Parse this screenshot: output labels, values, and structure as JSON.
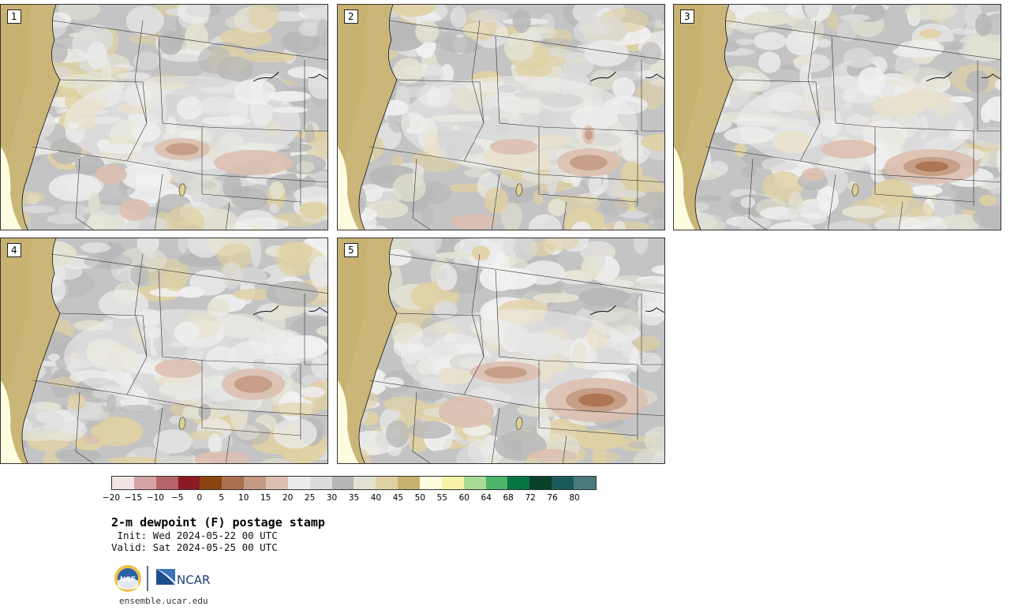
{
  "panels": [
    {
      "label": "1"
    },
    {
      "label": "2"
    },
    {
      "label": "3"
    },
    {
      "label": "4"
    },
    {
      "label": "5"
    }
  ],
  "colorbar": {
    "colors": [
      "#f3e4e4",
      "#d5a3a6",
      "#b56468",
      "#8b1a24",
      "#8b4513",
      "#a9714f",
      "#c49a82",
      "#dcc0b0",
      "#ececec",
      "#dcdcdc",
      "#b6b6b6",
      "#e3e2d2",
      "#e0d1a4",
      "#c8b271",
      "#fefde0",
      "#f7f4a8",
      "#a8dc94",
      "#4db56a",
      "#067542",
      "#08402a",
      "#1a5a5c",
      "#4b7a7c"
    ],
    "ticks": [
      "−20",
      "−15",
      "−10",
      "−5",
      "0",
      "5",
      "10",
      "15",
      "20",
      "25",
      "30",
      "35",
      "40",
      "45",
      "50",
      "55",
      "60",
      "64",
      "68",
      "72",
      "76",
      "80"
    ]
  },
  "title": "2-m dewpoint (F) postage stamp",
  "init": " Init: Wed 2024-05-22 00 UTC",
  "valid": "Valid: Sat 2024-05-25 00 UTC",
  "logos": {
    "nsf": "NSF",
    "ncar": "NCAR"
  },
  "footer_url": "ensemble.ucar.edu"
}
